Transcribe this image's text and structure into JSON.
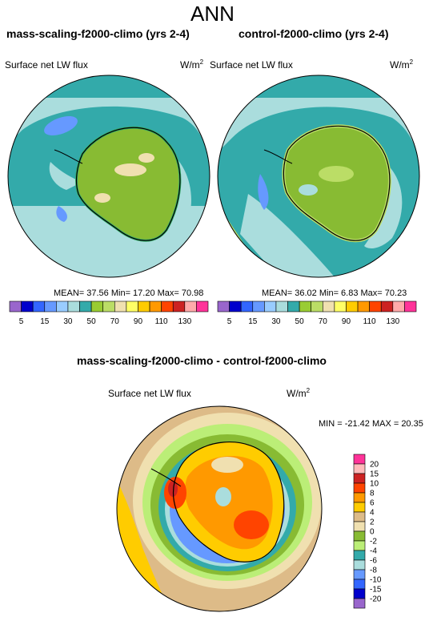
{
  "main_title": "ANN",
  "panel1": {
    "title": "mass-scaling-f2000-climo (yrs 2-4)",
    "variable": "Surface net LW flux",
    "units_base": "W/m",
    "units_exp": "2",
    "stats": "MEAN= 37.56  Min= 17.20  Max= 70.98"
  },
  "panel2": {
    "title": "control-f2000-climo (yrs 2-4)",
    "variable": "Surface net LW flux",
    "units_base": "W/m",
    "units_exp": "2",
    "stats": "MEAN= 36.02  Min=  6.83  Max= 70.23"
  },
  "diff_panel": {
    "title": "mass-scaling-f2000-climo - control-f2000-climo",
    "variable": "Surface net LW flux",
    "units_base": "W/m",
    "units_exp": "2",
    "stats": "MIN = -21.42  MAX =  20.35"
  },
  "colorbar_top": {
    "labels": [
      "5",
      "15",
      "30",
      "50",
      "70",
      "90",
      "110",
      "130"
    ],
    "colors": [
      "#9966cc",
      "#0000cc",
      "#3366ff",
      "#6699ff",
      "#99ccff",
      "#aadddd",
      "#33aaaa",
      "#99cc33",
      "#bbdd66",
      "#f0e0b0",
      "#ffff66",
      "#ffcc00",
      "#ff9900",
      "#ff4400",
      "#cc2222",
      "#ffaaaa",
      "#ff3399"
    ]
  },
  "colorbar_diff": {
    "labels": [
      "20",
      "15",
      "10",
      "8",
      "6",
      "4",
      "2",
      "0",
      "-2",
      "-4",
      "-6",
      "-8",
      "-10",
      "-15",
      "-20"
    ],
    "colors": [
      "#ff3399",
      "#ffbbbb",
      "#cc2222",
      "#ff4400",
      "#ff9900",
      "#ffcc00",
      "#ddbb88",
      "#f0e0b0",
      "#88bb33",
      "#bbee77",
      "#33aaaa",
      "#aadddd",
      "#6699ff",
      "#3366ff",
      "#0000cc",
      "#9966cc"
    ]
  }
}
